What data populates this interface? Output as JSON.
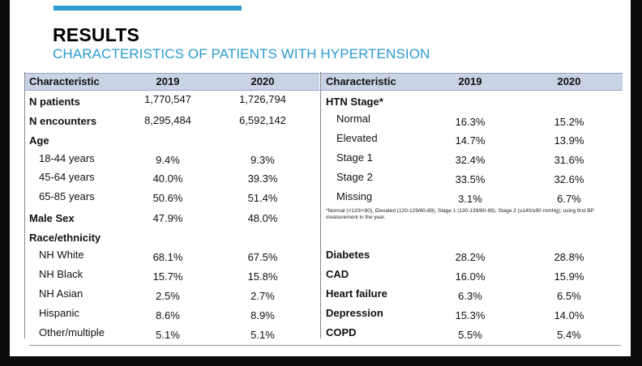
{
  "title": "RESULTS",
  "subtitle": "CHARACTERISTICS OF PATIENTS WITH HYPERTENSION",
  "left": {
    "headers": [
      "Characteristic",
      "2019",
      "2020"
    ],
    "rows": [
      {
        "label": "N patients",
        "bold": true,
        "v2019": "1,770,547",
        "v2020": "1,726,794"
      },
      {
        "label": "N encounters",
        "bold": true,
        "v2019": "8,295,484",
        "v2020": "6,592,142"
      },
      {
        "label": "Age",
        "bold": true,
        "v2019": "",
        "v2020": ""
      },
      {
        "label": "18-44 years",
        "bold": false,
        "v2019": "9.4%",
        "v2020": "9.3%"
      },
      {
        "label": "45-64 years",
        "bold": false,
        "v2019": "40.0%",
        "v2020": "39.3%"
      },
      {
        "label": "65-85 years",
        "bold": false,
        "v2019": "50.6%",
        "v2020": "51.4%"
      },
      {
        "label": "Male Sex",
        "bold": true,
        "v2019": "47.9%",
        "v2020": "48.0%"
      },
      {
        "label": "Race/ethnicity",
        "bold": true,
        "v2019": "",
        "v2020": ""
      },
      {
        "label": "NH White",
        "bold": false,
        "v2019": "68.1%",
        "v2020": "67.5%"
      },
      {
        "label": "NH Black",
        "bold": false,
        "v2019": "15.7%",
        "v2020": "15.8%"
      },
      {
        "label": "NH Asian",
        "bold": false,
        "v2019": "2.5%",
        "v2020": "2.7%"
      },
      {
        "label": "Hispanic",
        "bold": false,
        "v2019": "8.6%",
        "v2020": "8.9%"
      },
      {
        "label": "Other/multiple",
        "bold": false,
        "v2019": "5.1%",
        "v2020": "5.1%"
      }
    ]
  },
  "right": {
    "headers": [
      "Characteristic",
      "2019",
      "2020"
    ],
    "htn_label": "HTN Stage*",
    "htn_rows": [
      {
        "label": "Normal",
        "v2019": "16.3%",
        "v2020": "15.2%"
      },
      {
        "label": "Elevated",
        "v2019": "14.7%",
        "v2020": "13.9%"
      },
      {
        "label": "Stage 1",
        "v2019": "32.4%",
        "v2020": "31.6%"
      },
      {
        "label": "Stage 2",
        "v2019": "33.5%",
        "v2020": "32.6%"
      },
      {
        "label": "Missing",
        "v2019": "3.1%",
        "v2020": "6.7%"
      }
    ],
    "footnote": "*Normal (<120/<80), Elevated (120-129/80-89), Stage 1 (130-139/80-89), Stage 2 (≥140/≥90 mmHg); using first BP measurement in the year.",
    "condition_rows": [
      {
        "label": "Diabetes",
        "v2019": "28.2%",
        "v2020": "28.8%"
      },
      {
        "label": "CAD",
        "v2019": "16.0%",
        "v2020": "15.9%"
      },
      {
        "label": "Heart failure",
        "v2019": "6.3%",
        "v2020": "6.5%"
      },
      {
        "label": "Depression",
        "v2019": "15.3%",
        "v2020": "14.0%"
      },
      {
        "label": "COPD",
        "v2019": "5.5%",
        "v2020": "5.4%"
      }
    ]
  }
}
